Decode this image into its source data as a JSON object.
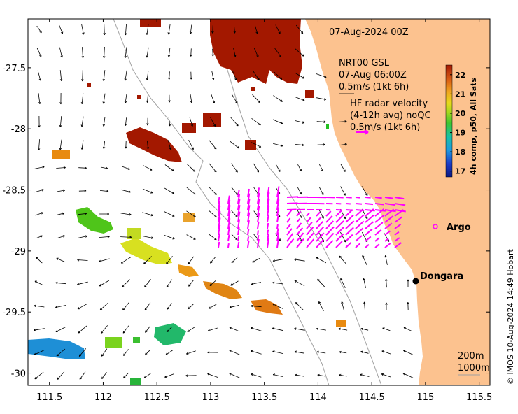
{
  "chart_data": {
    "type": "map",
    "title_date": "07-Aug-2024 00Z",
    "xlim": [
      111.3,
      115.6
    ],
    "ylim": [
      -30.1,
      -27.1
    ],
    "xticks": [
      111.5,
      112,
      112.5,
      113,
      113.5,
      114,
      114.5,
      115,
      115.5
    ],
    "xtick_labels": [
      "111.5",
      "112",
      "112.5",
      "113",
      "113.5",
      "114",
      "114.5",
      "115",
      "115.5"
    ],
    "yticks": [
      -27.5,
      -28,
      -28.5,
      -29,
      -29.5,
      -30
    ],
    "ytick_labels": [
      "-27.5",
      "-28",
      "-28.5",
      "-29",
      "-29.5",
      "-30"
    ],
    "gsl_legend": {
      "line1": "NRT00 GSL",
      "line2": "07-Aug 06:00Z",
      "line3": "0.5m/s (1kt 6h)"
    },
    "radar_legend": {
      "line1": "HF radar velocity",
      "line2": "(4-12h avg) noQC",
      "line3": "0.5m/s (1kt 6h)",
      "color": "#ff00ff"
    },
    "colorbar": {
      "label": "4h comp, p50, All Sats",
      "ticks": [
        17,
        18,
        19,
        20,
        21,
        22
      ],
      "tick_labels": [
        "17",
        "18",
        "19",
        "20",
        "21",
        "22"
      ],
      "range": [
        16.7,
        22.5
      ]
    },
    "places": [
      {
        "name": "Argo",
        "lon": 115.15,
        "lat": -28.84,
        "marker": "magenta-circle"
      },
      {
        "name": "Dongara",
        "lon": 114.93,
        "lat": -29.25,
        "marker": "black-dot"
      }
    ],
    "depth_labels": [
      "200m",
      "1000m"
    ],
    "credit": "© IMOS 10-Aug-2024 14:49 Hobart",
    "colors": {
      "land": "#fcc28f",
      "sst_warm": "#a31800",
      "radar": "#ff00ff",
      "isobath": "#a0a0a0"
    }
  }
}
